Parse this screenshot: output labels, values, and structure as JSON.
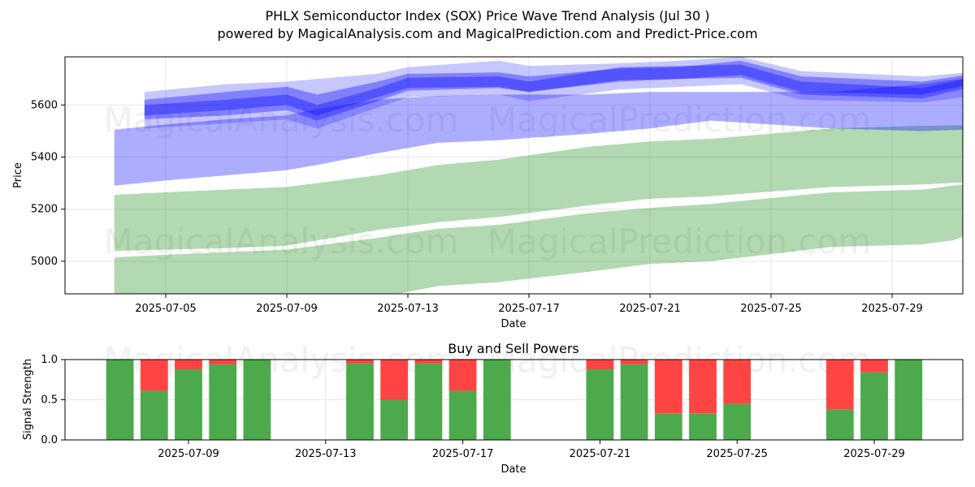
{
  "page": {
    "title_line1": "PHLX Semiconductor Index (SOX) Price Wave Trend Analysis (Jul 30 )",
    "title_line2": "powered by MagicalAnalysis.com and MagicalPrediction.com and Predict-Price.com",
    "watermark_left": "MagicalAnalysis.com",
    "watermark_right": "MagicalPrediction.com"
  },
  "colors": {
    "blue_band": "#0000ff",
    "green_band": "#008000",
    "buy": "#4caa4c",
    "sell": "#ff4444",
    "grid": "#e6e6e6"
  },
  "chart_data": [
    {
      "type": "area",
      "title": "PHLX Semiconductor Index (SOX) Price Wave Trend Analysis (Jul 30 )",
      "xlabel": "Date",
      "ylabel": "Price",
      "x_ticks": [
        "2025-07-05",
        "2025-07-09",
        "2025-07-13",
        "2025-07-17",
        "2025-07-21",
        "2025-07-25",
        "2025-07-29"
      ],
      "y_ticks": [
        5000,
        5200,
        5400,
        5600
      ],
      "ylim": [
        4875,
        5785
      ],
      "x_start": "2025-07-02",
      "x_end": "2025-07-31",
      "blue_bands": [
        {
          "x": [
            2.3,
            5,
            7,
            8,
            10,
            11,
            14,
            15,
            18,
            20,
            22,
            24,
            28,
            30
          ],
          "upper": [
            5600,
            5620,
            5640,
            5600,
            5665,
            5705,
            5710,
            5690,
            5745,
            5750,
            5755,
            5690,
            5665,
            5715
          ],
          "lower": [
            5545,
            5560,
            5580,
            5540,
            5615,
            5655,
            5665,
            5650,
            5695,
            5700,
            5705,
            5640,
            5625,
            5680
          ]
        },
        {
          "x": [
            2.3,
            5,
            7,
            8,
            10,
            11,
            14,
            15,
            18,
            20,
            22,
            24,
            28,
            30
          ],
          "upper": [
            5620,
            5650,
            5670,
            5640,
            5690,
            5720,
            5725,
            5710,
            5740,
            5745,
            5770,
            5710,
            5690,
            5725
          ],
          "lower": [
            5560,
            5580,
            5600,
            5560,
            5630,
            5665,
            5670,
            5650,
            5690,
            5700,
            5715,
            5650,
            5640,
            5690
          ]
        },
        {
          "x": [
            2.3,
            5,
            7,
            8,
            10,
            11,
            14,
            15,
            18,
            20,
            22,
            24,
            28,
            30
          ],
          "upper": [
            5650,
            5680,
            5690,
            5700,
            5720,
            5745,
            5770,
            5750,
            5760,
            5770,
            5785,
            5730,
            5710,
            5730
          ],
          "lower": [
            5510,
            5530,
            5545,
            5510,
            5590,
            5630,
            5640,
            5615,
            5660,
            5670,
            5680,
            5620,
            5610,
            5640
          ]
        },
        {
          "x": [
            1.3,
            3,
            5,
            7,
            8,
            10,
            12,
            14,
            17,
            19,
            21,
            25,
            28,
            30.7
          ],
          "upper": [
            5505,
            5525,
            5545,
            5560,
            5585,
            5620,
            5635,
            5640,
            5640,
            5650,
            5650,
            5650,
            5680,
            5725
          ],
          "lower": [
            5290,
            5310,
            5330,
            5350,
            5370,
            5415,
            5455,
            5465,
            5490,
            5510,
            5540,
            5510,
            5500,
            5510
          ]
        }
      ],
      "green_bands": [
        {
          "x": [
            1.3,
            3,
            5,
            7,
            8,
            10,
            12,
            14,
            17,
            19,
            21,
            25,
            28,
            30.7
          ],
          "upper": [
            5255,
            5265,
            5275,
            5285,
            5300,
            5330,
            5370,
            5390,
            5440,
            5460,
            5470,
            5510,
            5520,
            5525
          ],
          "lower": [
            5040,
            5045,
            5050,
            5060,
            5080,
            5120,
            5150,
            5170,
            5215,
            5240,
            5250,
            5285,
            5295,
            5310
          ]
        },
        {
          "x": [
            1.3,
            3,
            5,
            7,
            8,
            10,
            12,
            14,
            17,
            19,
            21,
            25,
            28,
            29,
            30.7
          ],
          "upper": [
            5015,
            5025,
            5035,
            5045,
            5060,
            5090,
            5125,
            5140,
            5185,
            5205,
            5220,
            5265,
            5275,
            5290,
            5310
          ],
          "lower": [
            4870,
            4860,
            4850,
            4845,
            4845,
            4860,
            4905,
            4920,
            4960,
            4990,
            5000,
            5055,
            5065,
            5080,
            5150
          ]
        },
        {
          "x": [
            28.7,
            29.7,
            31.5,
            30.7
          ],
          "upper": [
            5300,
            5515,
            5395,
            5305
          ],
          "lower": [
            5300,
            5515,
            5395,
            5305
          ]
        }
      ]
    },
    {
      "type": "bar",
      "title": "Buy and Sell Powers",
      "xlabel": "Date",
      "ylabel": "Signal Strength",
      "ylim": [
        0.0,
        1.0
      ],
      "y_ticks": [
        "0.0",
        "0.5",
        "1.0"
      ],
      "x_ticks": [
        "2025-07-09",
        "2025-07-13",
        "2025-07-17",
        "2025-07-21",
        "2025-07-25",
        "2025-07-29"
      ],
      "dates": [
        "2025-07-07",
        "2025-07-08",
        "2025-07-09",
        "2025-07-10",
        "2025-07-11",
        "2025-07-14",
        "2025-07-15",
        "2025-07-16",
        "2025-07-17",
        "2025-07-18",
        "2025-07-21",
        "2025-07-22",
        "2025-07-23",
        "2025-07-24",
        "2025-07-25",
        "2025-07-28",
        "2025-07-29",
        "2025-07-30"
      ],
      "buy": [
        1.0,
        0.61,
        0.88,
        0.94,
        1.0,
        0.95,
        0.5,
        0.95,
        0.61,
        1.0,
        0.88,
        0.94,
        0.33,
        0.33,
        0.45,
        0.38,
        0.84,
        1.0
      ],
      "sell": [
        0.0,
        0.39,
        0.12,
        0.06,
        0.0,
        0.05,
        0.5,
        0.05,
        0.39,
        0.0,
        0.12,
        0.06,
        0.67,
        0.67,
        0.55,
        0.62,
        0.16,
        0.0
      ]
    }
  ]
}
